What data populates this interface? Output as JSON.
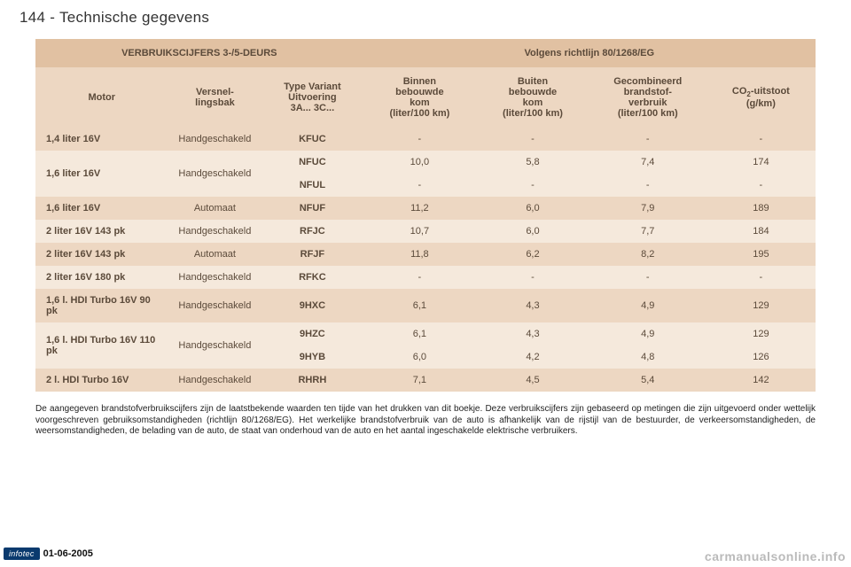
{
  "header": {
    "page_number": "144",
    "section_title": "Technische gegevens"
  },
  "table": {
    "colors": {
      "light": "#f5e9dc",
      "medium": "#edd7c2",
      "dark": "#e1c1a2",
      "text": "#5b4a3a"
    },
    "top_headers": {
      "left": "VERBRUIKSCIJFERS 3-/5-DEURS",
      "right": "Volgens richtlijn 80/1268/EG"
    },
    "columns": {
      "motor": "Motor",
      "gearbox": "Versnel-\nlingsbak",
      "type": "Type Variant\nUitvoering\n3A... 3C...",
      "urban": "Binnen\nbebouwde\nkom\n(liter/100 km)",
      "extra": "Buiten\nbebouwde\nkom\n(liter/100 km)",
      "combined": "Gecombineerd\nbrandstof-\nverbruik\n(liter/100 km)",
      "co2_prefix": "CO",
      "co2_sub": "2",
      "co2_suffix": "-uitstoot\n(g/km)"
    },
    "rows": [
      {
        "shade": "medium",
        "motor": "1,4 liter 16V",
        "gearbox": "Handgeschakeld",
        "type": "KFUC",
        "urban": "-",
        "extra": "-",
        "combined": "-",
        "co2": "-",
        "span": 1
      },
      {
        "shade": "light",
        "motor": "1,6 liter 16V",
        "gearbox": "Handgeschakeld",
        "type": "NFUC",
        "urban": "10,0",
        "extra": "5,8",
        "combined": "7,4",
        "co2": "174",
        "span": 2
      },
      {
        "shade": "light",
        "type": "NFUL",
        "urban": "-",
        "extra": "-",
        "combined": "-",
        "co2": "-",
        "childOf": 1
      },
      {
        "shade": "medium",
        "motor": "1,6 liter 16V",
        "gearbox": "Automaat",
        "type": "NFUF",
        "urban": "11,2",
        "extra": "6,0",
        "combined": "7,9",
        "co2": "189",
        "span": 1
      },
      {
        "shade": "light",
        "motor": "2 liter 16V 143 pk",
        "gearbox": "Handgeschakeld",
        "type": "RFJC",
        "urban": "10,7",
        "extra": "6,0",
        "combined": "7,7",
        "co2": "184",
        "span": 1
      },
      {
        "shade": "medium",
        "motor": "2 liter 16V 143 pk",
        "gearbox": "Automaat",
        "type": "RFJF",
        "urban": "11,8",
        "extra": "6,2",
        "combined": "8,2",
        "co2": "195",
        "span": 1
      },
      {
        "shade": "light",
        "motor": "2 liter 16V 180 pk",
        "gearbox": "Handgeschakeld",
        "type": "RFKC",
        "urban": "-",
        "extra": "-",
        "combined": "-",
        "co2": "-",
        "span": 1
      },
      {
        "shade": "medium",
        "motor": "1,6 l. HDI Turbo 16V 90 pk",
        "gearbox": "Handgeschakeld",
        "type": "9HXC",
        "urban": "6,1",
        "extra": "4,3",
        "combined": "4,9",
        "co2": "129",
        "span": 1
      },
      {
        "shade": "light",
        "motor": "1,6 l. HDI Turbo 16V 110 pk",
        "gearbox": "Handgeschakeld",
        "type": "9HZC",
        "urban": "6,1",
        "extra": "4,3",
        "combined": "4,9",
        "co2": "129",
        "span": 2
      },
      {
        "shade": "light",
        "type": "9HYB",
        "urban": "6,0",
        "extra": "4,2",
        "combined": "4,8",
        "co2": "126",
        "childOf": 8
      },
      {
        "shade": "medium",
        "motor": "2 l. HDI Turbo 16V",
        "gearbox": "Handgeschakeld",
        "type": "RHRH",
        "urban": "7,1",
        "extra": "4,5",
        "combined": "5,4",
        "co2": "142",
        "span": 1
      }
    ]
  },
  "footnote": "De aangegeven brandstofverbruikscijfers zijn de laatstbekende waarden ten tijde van het drukken van dit boekje. Deze verbruikscijfers zijn gebaseerd op metingen die zijn uitgevoerd onder wettelijk voorgeschreven gebruiksomstandigheden (richtlijn 80/1268/EG). Het werkelijke brandstofverbruik van de auto is afhankelijk van de rijstijl van de bestuurder, de verkeersomstandigheden, de weersomstandigheden, de belading van de auto, de staat van onderhoud van de auto en het aantal ingeschakelde elektrische verbruikers.",
  "footer": {
    "logo_text": "infotec",
    "date": "01-06-2005"
  },
  "watermark": "carmanualsonline.info"
}
